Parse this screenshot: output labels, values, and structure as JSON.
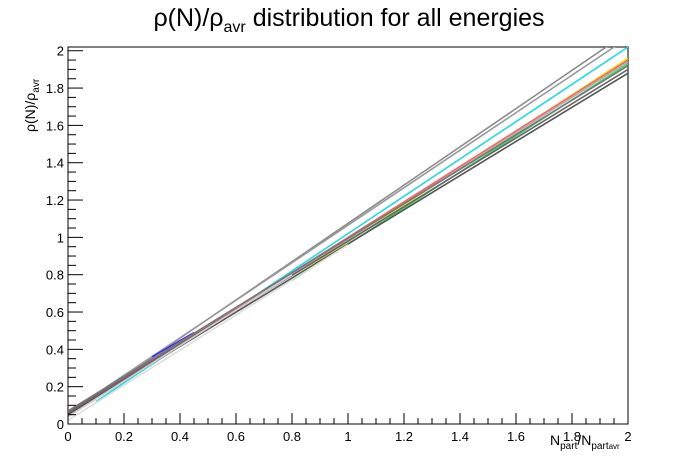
{
  "chart_data": {
    "type": "line",
    "title_main": "ρ(N)/ρ",
    "title_sub": "avr",
    "title_rest": " distribution for all energies",
    "xlabel_main": "N",
    "xlabel_sub1": "part",
    "xlabel_mid": "/N",
    "xlabel_sub2": "part",
    "xlabel_subsub": "avr",
    "ylabel_main": "ρ(N)/ρ",
    "ylabel_sub": "avr",
    "xlim": [
      0,
      2
    ],
    "ylim": [
      0,
      2.02
    ],
    "x_ticks": [
      "0",
      "0.2",
      "0.4",
      "0.6",
      "0.8",
      "1",
      "1.2",
      "1.4",
      "1.6",
      "1.8",
      "2"
    ],
    "y_ticks": [
      "0",
      "0.2",
      "0.4",
      "0.6",
      "0.8",
      "1",
      "1.2",
      "1.4",
      "1.6",
      "1.8",
      "2"
    ],
    "grid": false,
    "series": [
      {
        "color": "#8c8c8c",
        "x": [
          0,
          2
        ],
        "y": [
          0.05,
          2.1
        ]
      },
      {
        "color": "#999999",
        "x": [
          0,
          2
        ],
        "y": [
          0.06,
          2.07
        ]
      },
      {
        "color": "#26d9e0",
        "x": [
          0.1,
          2
        ],
        "y": [
          0.12,
          2.02
        ]
      },
      {
        "color": "#ff40ff",
        "x": [
          0,
          1.6
        ],
        "y": [
          0.06,
          1.56
        ]
      },
      {
        "color": "#e8e020",
        "x": [
          0.8,
          2
        ],
        "y": [
          0.78,
          1.96
        ]
      },
      {
        "color": "#30e060",
        "x": [
          0.8,
          2
        ],
        "y": [
          0.77,
          1.93
        ]
      },
      {
        "color": "#3030ff",
        "x": [
          0.3,
          0.45
        ],
        "y": [
          0.36,
          0.49
        ]
      },
      {
        "color": "#ff6060",
        "x": [
          0,
          2
        ],
        "y": [
          0.05,
          1.95
        ]
      },
      {
        "color": "#b0b0b0",
        "x": [
          0,
          2
        ],
        "y": [
          0.04,
          1.94
        ]
      },
      {
        "color": "#777777",
        "x": [
          0,
          2
        ],
        "y": [
          0.07,
          1.92
        ]
      },
      {
        "color": "#666666",
        "x": [
          0,
          2
        ],
        "y": [
          0.06,
          1.9
        ]
      },
      {
        "color": "#555555",
        "x": [
          0,
          2
        ],
        "y": [
          0.05,
          1.88
        ]
      },
      {
        "color": "#dddddd",
        "x": [
          0,
          1.0
        ],
        "y": [
          0.02,
          0.96
        ]
      },
      {
        "color": "#cfcfcf",
        "x": [
          0,
          0.8
        ],
        "y": [
          0.04,
          0.8
        ]
      }
    ]
  }
}
